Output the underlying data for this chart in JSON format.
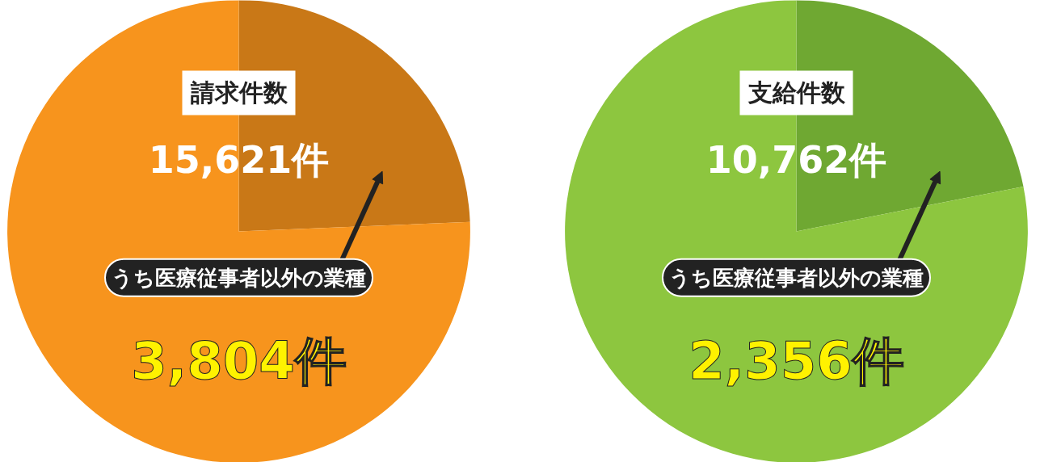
{
  "chart_data": [
    {
      "type": "pie",
      "title": "請求件数",
      "categories": [
        null,
        null
      ],
      "values": [
        24.35,
        75.65
      ],
      "colors": [
        "#c97817",
        "#f7941d"
      ],
      "annotations": [
        "15,621件",
        "うち医療従事者以外の業種",
        "3,804件"
      ]
    },
    {
      "type": "pie",
      "title": "支給件数",
      "categories": [
        null,
        null
      ],
      "values": [
        21.89,
        78.11
      ],
      "colors": [
        "#6fa832",
        "#8dc63f"
      ],
      "annotations": [
        "10,762件",
        "うち医療従事者以外の業種",
        "2,356件"
      ]
    }
  ]
}
